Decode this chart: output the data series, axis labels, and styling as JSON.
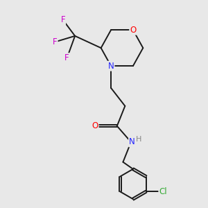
{
  "background_color": "#e8e8e8",
  "bond_color": "#1a1a1a",
  "atom_colors": {
    "O": "#ff0000",
    "N": "#2222ff",
    "F": "#cc00cc",
    "Cl": "#33aa33",
    "H_gray": "#888888"
  },
  "font_size": 8.5,
  "bond_lw": 1.4
}
